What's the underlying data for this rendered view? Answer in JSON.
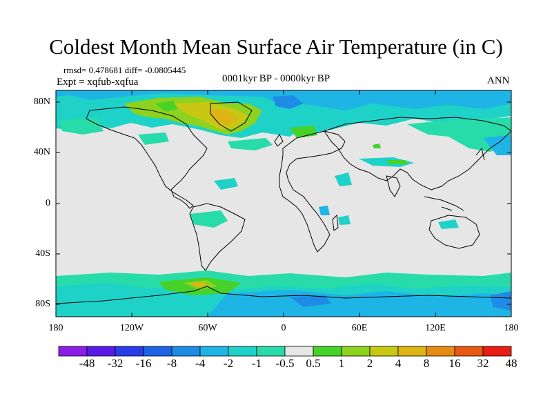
{
  "title": "Coldest Month Mean Surface Air Temperature (in C)",
  "stats": {
    "rmsd_line": "rmsd= 0.478681  diff= -0.0805445",
    "expt": "Expt = xqfub-xqfua"
  },
  "period": "0001kyr BP - 0000kyr BP",
  "season": "ANN",
  "y_ticks": [
    "80N",
    "40N",
    "0",
    "40S",
    "80S"
  ],
  "x_ticks": [
    "180",
    "120W",
    "60W",
    "0",
    "60E",
    "120E",
    "180"
  ],
  "colorbar": {
    "labels": [
      "-48",
      "-32",
      "-16",
      "-8",
      "-4",
      "-2",
      "-1",
      "-0.5",
      "0.5",
      "1",
      "2",
      "4",
      "8",
      "16",
      "32",
      "48"
    ],
    "colors": [
      "#8b1ee6",
      "#5a1ae6",
      "#2a3ce6",
      "#1e64e6",
      "#1e8ce6",
      "#1eb4e6",
      "#1ed2c8",
      "#28dcaa",
      "#e6e6e6",
      "#46d228",
      "#8cd21e",
      "#c8c814",
      "#dcb414",
      "#e68c14",
      "#e65a14",
      "#e61e14"
    ]
  },
  "map_colors": {
    "neutral": "#e6e6e6",
    "coast": "#000000"
  }
}
